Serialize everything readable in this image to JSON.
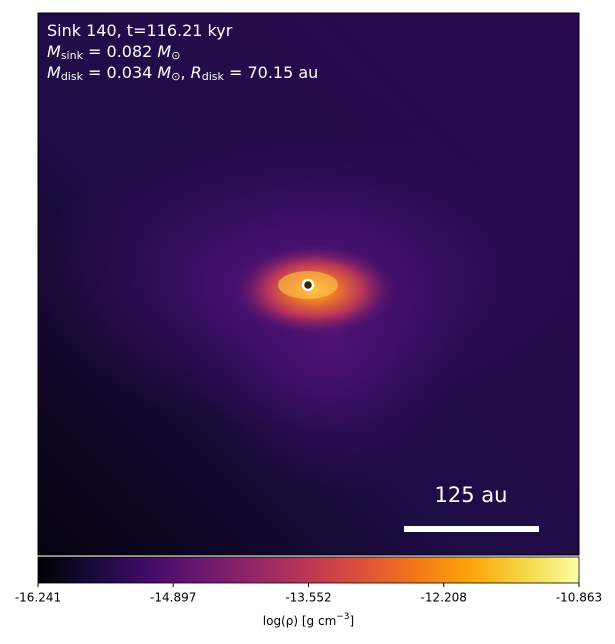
{
  "chart_data": {
    "type": "image",
    "annotation_lines": [
      [
        "Sink 140, t=116.21 kyr"
      ],
      [
        "M",
        "sink",
        " = 0.082 ",
        "M",
        "⊙"
      ],
      [
        "M",
        "disk",
        " = 0.034 ",
        "M",
        "⊙",
        ", ",
        "R",
        "disk",
        " = 70.15 au"
      ]
    ],
    "scale_bar_label": "125 au",
    "colorbar": {
      "clim": [
        -16.241,
        -10.863
      ],
      "ticks": [
        -16.241,
        -14.897,
        -13.552,
        -12.208,
        -10.863
      ],
      "label": [
        "log(ρ) [g cm",
        "−3",
        "]"
      ],
      "colormap": "inferno"
    }
  }
}
